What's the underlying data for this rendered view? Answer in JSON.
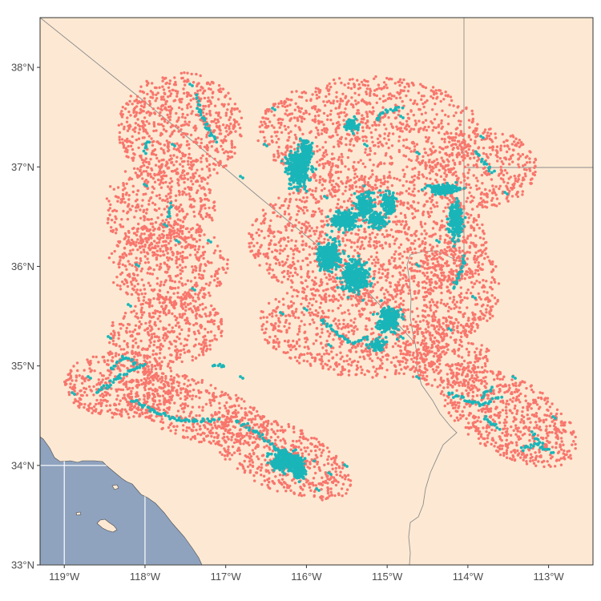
{
  "colors": {
    "land": "#fde9d3",
    "ocean": "#8fa3bf",
    "graticule": "#ffffff",
    "border": "#8c8c8c",
    "frame": "#333333",
    "presence": "#f8766d",
    "absence": "#19b5b9"
  },
  "axes": {
    "x_ticks": [
      "119°W",
      "118°W",
      "117°W",
      "116°W",
      "115°W",
      "114°W",
      "113°W"
    ],
    "y_ticks": [
      "33°N",
      "34°N",
      "35°N",
      "36°N",
      "37°N",
      "38°N"
    ],
    "x_values": [
      -119,
      -118,
      -117,
      -116,
      -115,
      -114,
      -113
    ],
    "y_values": [
      33,
      34,
      35,
      36,
      37,
      38
    ],
    "xlim": [
      -119.3,
      -112.45
    ],
    "ylim": [
      33.0,
      38.5
    ]
  },
  "point_series": [
    {
      "key": "red",
      "color": "#f8766d"
    },
    {
      "key": "teal",
      "color": "#19b5b9"
    }
  ]
}
